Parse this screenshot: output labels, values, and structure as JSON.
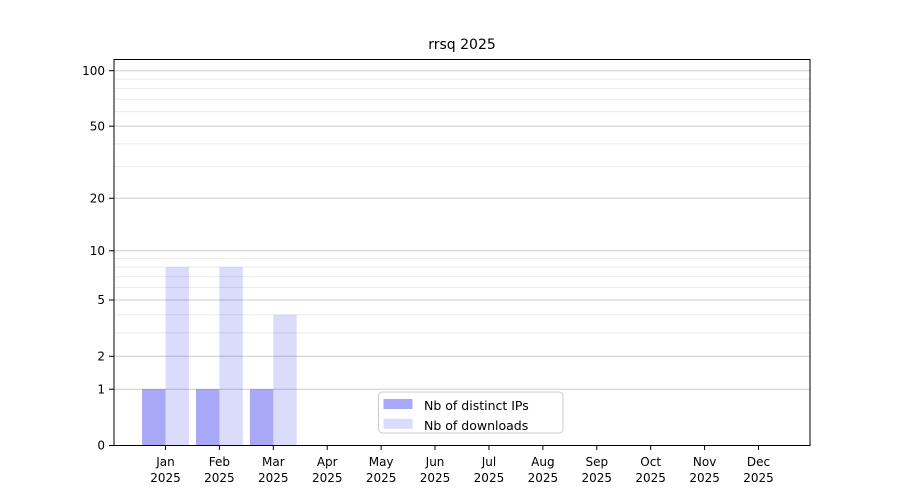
{
  "chart_data": {
    "type": "bar",
    "title": "rrsq 2025",
    "categories": [
      "Jan",
      "Feb",
      "Mar",
      "Apr",
      "May",
      "Jun",
      "Jul",
      "Aug",
      "Sep",
      "Oct",
      "Nov",
      "Dec"
    ],
    "category_year": "2025",
    "series": [
      {
        "name": "Nb of distinct IPs",
        "color": "rgba(0,0,230,0.34)",
        "values": [
          1,
          1,
          1,
          0,
          0,
          0,
          0,
          0,
          0,
          0,
          0,
          0
        ]
      },
      {
        "name": "Nb of downloads",
        "color": "rgba(0,0,230,0.14)",
        "values": [
          8,
          8,
          4,
          0,
          0,
          0,
          0,
          0,
          0,
          0,
          0,
          0
        ]
      }
    ],
    "xlabel": "",
    "ylabel": "",
    "y_axis": {
      "scale": "log10(1+value)",
      "tick_labels": [
        "0",
        "1",
        "2",
        "5",
        "10",
        "20",
        "50",
        "100"
      ],
      "tick_values": [
        0,
        1,
        2,
        5,
        10,
        20,
        50,
        100
      ],
      "minor_gridline_values": [
        3,
        4,
        6,
        7,
        8,
        9,
        30,
        40,
        60,
        70,
        80,
        90
      ],
      "ylim": [
        0,
        115
      ]
    },
    "legend": {
      "position": "inside-bottom-center",
      "entries": [
        "Nb of distinct IPs",
        "Nb of downloads"
      ]
    },
    "colors": {
      "axis": "#000000",
      "major_grid": "#cccccc",
      "minor_grid": "#ebebeb",
      "legend_border": "#cccccc",
      "background": "#ffffff",
      "text": "#000000"
    }
  }
}
